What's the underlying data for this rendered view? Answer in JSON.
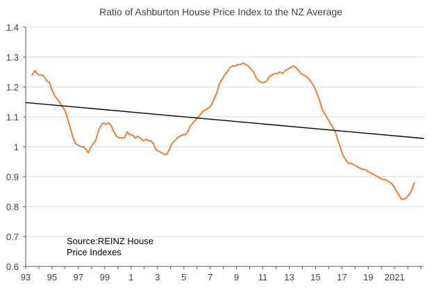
{
  "chart_data": {
    "type": "line",
    "title": "Ratio of Ashburton House Price Index to the NZ Average",
    "xlabel": "",
    "ylabel": "",
    "x_ticks": [
      "93",
      "95",
      "97",
      "99",
      "1",
      "3",
      "5",
      "7",
      "9",
      "11",
      "13",
      "15",
      "17",
      "19",
      "2021"
    ],
    "x_tick_years": [
      1993,
      1995,
      1997,
      1999,
      2001,
      2003,
      2005,
      2007,
      2009,
      2011,
      2013,
      2015,
      2017,
      2019,
      2021
    ],
    "xlim": [
      1993,
      2023.2
    ],
    "ylim": [
      0.6,
      1.4
    ],
    "y_ticks": [
      "0.6",
      "0.7",
      "0.8",
      "0.9",
      "1",
      "1.1",
      "1.2",
      "1.3",
      "1.4"
    ],
    "y_tick_values": [
      0.6,
      0.7,
      0.8,
      0.9,
      1.0,
      1.1,
      1.2,
      1.3,
      1.4
    ],
    "grid": true,
    "annotation": [
      "Source:REINZ House",
      "Price Indexes"
    ],
    "series": [
      {
        "color": "#ED7D31",
        "points": [
          [
            1993.5,
            1.24
          ],
          [
            1993.7,
            1.255
          ],
          [
            1993.85,
            1.245
          ],
          [
            1994.0,
            1.24
          ],
          [
            1994.2,
            1.24
          ],
          [
            1994.4,
            1.235
          ],
          [
            1994.6,
            1.22
          ],
          [
            1994.8,
            1.215
          ],
          [
            1995.0,
            1.19
          ],
          [
            1995.2,
            1.17
          ],
          [
            1995.4,
            1.16
          ],
          [
            1995.7,
            1.14
          ],
          [
            1996.0,
            1.12
          ],
          [
            1996.2,
            1.09
          ],
          [
            1996.4,
            1.06
          ],
          [
            1996.6,
            1.03
          ],
          [
            1996.8,
            1.01
          ],
          [
            1997.0,
            1.005
          ],
          [
            1997.2,
            1.0
          ],
          [
            1997.4,
            1.0
          ],
          [
            1997.6,
            0.99
          ],
          [
            1997.75,
            0.98
          ],
          [
            1997.9,
            0.995
          ],
          [
            1998.1,
            1.01
          ],
          [
            1998.3,
            1.02
          ],
          [
            1998.5,
            1.05
          ],
          [
            1998.7,
            1.07
          ],
          [
            1998.9,
            1.08
          ],
          [
            1999.1,
            1.075
          ],
          [
            1999.3,
            1.08
          ],
          [
            1999.5,
            1.07
          ],
          [
            1999.7,
            1.05
          ],
          [
            1999.9,
            1.035
          ],
          [
            2000.1,
            1.03
          ],
          [
            2000.3,
            1.03
          ],
          [
            2000.5,
            1.03
          ],
          [
            2000.7,
            1.05
          ],
          [
            2000.9,
            1.04
          ],
          [
            2001.1,
            1.04
          ],
          [
            2001.3,
            1.03
          ],
          [
            2001.5,
            1.035
          ],
          [
            2001.7,
            1.03
          ],
          [
            2001.9,
            1.02
          ],
          [
            2002.1,
            1.025
          ],
          [
            2002.3,
            1.02
          ],
          [
            2002.5,
            1.02
          ],
          [
            2002.7,
            1.01
          ],
          [
            2002.9,
            0.99
          ],
          [
            2003.1,
            0.985
          ],
          [
            2003.3,
            0.98
          ],
          [
            2003.5,
            0.975
          ],
          [
            2003.7,
            0.975
          ],
          [
            2003.9,
            0.99
          ],
          [
            2004.1,
            1.01
          ],
          [
            2004.3,
            1.02
          ],
          [
            2004.5,
            1.03
          ],
          [
            2004.7,
            1.035
          ],
          [
            2004.9,
            1.04
          ],
          [
            2005.1,
            1.04
          ],
          [
            2005.3,
            1.05
          ],
          [
            2005.5,
            1.07
          ],
          [
            2005.7,
            1.08
          ],
          [
            2005.9,
            1.09
          ],
          [
            2006.1,
            1.1
          ],
          [
            2006.3,
            1.11
          ],
          [
            2006.5,
            1.12
          ],
          [
            2006.7,
            1.125
          ],
          [
            2006.9,
            1.13
          ],
          [
            2007.1,
            1.14
          ],
          [
            2007.3,
            1.16
          ],
          [
            2007.5,
            1.18
          ],
          [
            2007.7,
            1.21
          ],
          [
            2007.9,
            1.225
          ],
          [
            2008.1,
            1.24
          ],
          [
            2008.3,
            1.25
          ],
          [
            2008.5,
            1.265
          ],
          [
            2008.7,
            1.27
          ],
          [
            2008.9,
            1.27
          ],
          [
            2009.1,
            1.275
          ],
          [
            2009.3,
            1.275
          ],
          [
            2009.5,
            1.28
          ],
          [
            2009.7,
            1.275
          ],
          [
            2009.9,
            1.27
          ],
          [
            2010.1,
            1.26
          ],
          [
            2010.3,
            1.25
          ],
          [
            2010.5,
            1.23
          ],
          [
            2010.7,
            1.22
          ],
          [
            2010.9,
            1.215
          ],
          [
            2011.1,
            1.215
          ],
          [
            2011.3,
            1.22
          ],
          [
            2011.5,
            1.235
          ],
          [
            2011.7,
            1.24
          ],
          [
            2011.9,
            1.245
          ],
          [
            2012.1,
            1.245
          ],
          [
            2012.3,
            1.25
          ],
          [
            2012.5,
            1.245
          ],
          [
            2012.7,
            1.255
          ],
          [
            2012.9,
            1.26
          ],
          [
            2013.1,
            1.265
          ],
          [
            2013.3,
            1.27
          ],
          [
            2013.5,
            1.265
          ],
          [
            2013.7,
            1.255
          ],
          [
            2013.9,
            1.245
          ],
          [
            2014.1,
            1.24
          ],
          [
            2014.3,
            1.235
          ],
          [
            2014.5,
            1.225
          ],
          [
            2014.7,
            1.215
          ],
          [
            2014.9,
            1.2
          ],
          [
            2015.1,
            1.18
          ],
          [
            2015.3,
            1.155
          ],
          [
            2015.5,
            1.125
          ],
          [
            2015.7,
            1.11
          ],
          [
            2015.9,
            1.095
          ],
          [
            2016.1,
            1.08
          ],
          [
            2016.3,
            1.065
          ],
          [
            2016.5,
            1.05
          ],
          [
            2016.7,
            1.02
          ],
          [
            2016.9,
            0.995
          ],
          [
            2017.1,
            0.97
          ],
          [
            2017.3,
            0.955
          ],
          [
            2017.5,
            0.945
          ],
          [
            2017.7,
            0.945
          ],
          [
            2017.9,
            0.94
          ],
          [
            2018.1,
            0.935
          ],
          [
            2018.3,
            0.93
          ],
          [
            2018.5,
            0.925
          ],
          [
            2018.7,
            0.925
          ],
          [
            2018.9,
            0.92
          ],
          [
            2019.1,
            0.915
          ],
          [
            2019.3,
            0.91
          ],
          [
            2019.5,
            0.905
          ],
          [
            2019.7,
            0.9
          ],
          [
            2019.9,
            0.895
          ],
          [
            2020.1,
            0.89
          ],
          [
            2020.3,
            0.89
          ],
          [
            2020.5,
            0.885
          ],
          [
            2020.7,
            0.88
          ],
          [
            2020.9,
            0.87
          ],
          [
            2021.1,
            0.855
          ],
          [
            2021.3,
            0.84
          ],
          [
            2021.5,
            0.825
          ],
          [
            2021.7,
            0.825
          ],
          [
            2021.9,
            0.83
          ],
          [
            2022.1,
            0.84
          ],
          [
            2022.3,
            0.855
          ],
          [
            2022.5,
            0.88
          ]
        ]
      },
      {
        "color": "#000000",
        "points": [
          [
            1993.0,
            1.148
          ],
          [
            2023.2,
            1.028
          ]
        ]
      }
    ]
  }
}
